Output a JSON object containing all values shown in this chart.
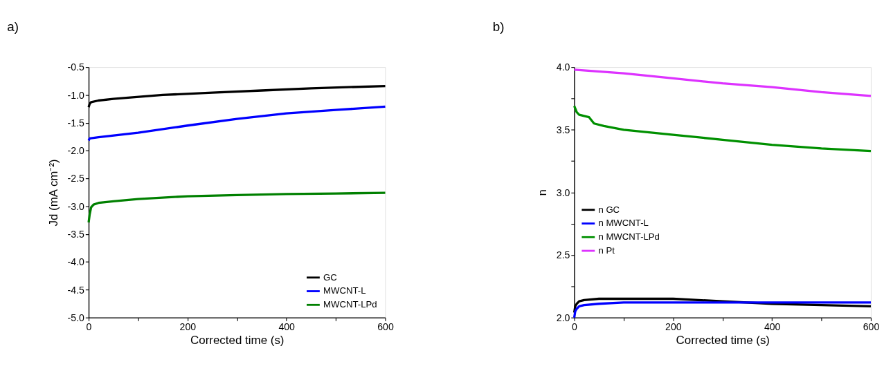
{
  "chart_data": [
    {
      "type": "line",
      "title": "a)",
      "xlabel": "Corrected time (s)",
      "ylabel": "Jd (mA cm⁻²)",
      "xlim": [
        0,
        600
      ],
      "xticks": [
        0,
        {
          "value": 100,
          "label": null
        },
        200,
        {
          "value": 300,
          "label": null
        },
        400,
        {
          "value": 500,
          "label": null
        },
        600
      ],
      "ylim": [
        -5.0,
        -0.5
      ],
      "yticks": [
        {
          "value": -5.0,
          "label": "-5.0"
        },
        -4.5,
        {
          "value": -4.0,
          "label": "-4.0"
        },
        -3.5,
        {
          "value": -3.0,
          "label": "-3.0"
        },
        -2.5,
        {
          "value": -2.0,
          "label": "-2.0"
        },
        -1.5,
        {
          "value": -1.0,
          "label": "-1.0"
        },
        -0.5
      ],
      "legend": "bottom right",
      "grid": false,
      "marker": "none",
      "line_style": "solid",
      "series": [
        {
          "name": "GC",
          "color": "#000000",
          "x": [
            0,
            2,
            5,
            20,
            50,
            80,
            150,
            250,
            350,
            450,
            600
          ],
          "values": [
            -1.22,
            -1.16,
            -1.13,
            -1.1,
            -1.07,
            -1.05,
            -1.0,
            -0.96,
            -0.92,
            -0.88,
            -0.84
          ]
        },
        {
          "name": "MWCNT-L",
          "color": "#0000ff",
          "x": [
            0,
            2,
            20,
            100,
            200,
            300,
            400,
            500,
            600
          ],
          "values": [
            -1.82,
            -1.78,
            -1.76,
            -1.68,
            -1.55,
            -1.43,
            -1.33,
            -1.27,
            -1.21
          ]
        },
        {
          "name": "MWCNT-LPd",
          "color": "#008000",
          "x": [
            0,
            2,
            5,
            10,
            20,
            50,
            100,
            200,
            300,
            400,
            500,
            600
          ],
          "values": [
            -3.29,
            -3.15,
            -3.02,
            -2.97,
            -2.94,
            -2.91,
            -2.87,
            -2.82,
            -2.8,
            -2.78,
            -2.77,
            -2.76
          ]
        }
      ]
    },
    {
      "type": "line",
      "title": "b)",
      "xlabel": "Corrected time (s)",
      "ylabel": "n",
      "xlim": [
        0,
        600
      ],
      "xticks": [
        0,
        {
          "value": 100,
          "label": null
        },
        200,
        {
          "value": 300,
          "label": null
        },
        400,
        {
          "value": 500,
          "label": null
        },
        600
      ],
      "ylim": [
        2.0,
        4.0
      ],
      "yticks": [
        {
          "value": 2.0,
          "label": "2.0"
        },
        {
          "value": 2.25,
          "label": null
        },
        2.5,
        {
          "value": 2.75,
          "label": null
        },
        {
          "value": 3.0,
          "label": "3.0"
        },
        {
          "value": 3.25,
          "label": null
        },
        3.5,
        {
          "value": 3.75,
          "label": null
        },
        {
          "value": 4.0,
          "label": "4.0"
        }
      ],
      "legend": "left",
      "grid": false,
      "marker": "none",
      "line_style": "solid",
      "series": [
        {
          "name": "n GC",
          "color": "#000000",
          "x": [
            0,
            2,
            5,
            10,
            20,
            50,
            100,
            200,
            300,
            400,
            500,
            600
          ],
          "values": [
            2.04,
            2.09,
            2.11,
            2.13,
            2.14,
            2.15,
            2.15,
            2.15,
            2.13,
            2.11,
            2.1,
            2.09
          ]
        },
        {
          "name": "n MWCNT-L",
          "color": "#0000ff",
          "x": [
            0,
            2,
            5,
            10,
            20,
            50,
            100,
            200,
            300,
            400,
            500,
            600
          ],
          "values": [
            2.0,
            2.05,
            2.07,
            2.09,
            2.1,
            2.11,
            2.12,
            2.12,
            2.12,
            2.12,
            2.12,
            2.12
          ]
        },
        {
          "name": "n MWCNT-LPd",
          "color": "#009000",
          "x": [
            0,
            5,
            10,
            20,
            30,
            40,
            60,
            100,
            200,
            300,
            400,
            500,
            600
          ],
          "values": [
            3.69,
            3.64,
            3.62,
            3.61,
            3.6,
            3.55,
            3.53,
            3.5,
            3.46,
            3.42,
            3.38,
            3.35,
            3.33
          ]
        },
        {
          "name": "n Pt",
          "color": "#dd33ff",
          "x": [
            0,
            100,
            200,
            300,
            400,
            500,
            600
          ],
          "values": [
            3.98,
            3.95,
            3.91,
            3.87,
            3.84,
            3.8,
            3.77
          ]
        }
      ]
    }
  ]
}
